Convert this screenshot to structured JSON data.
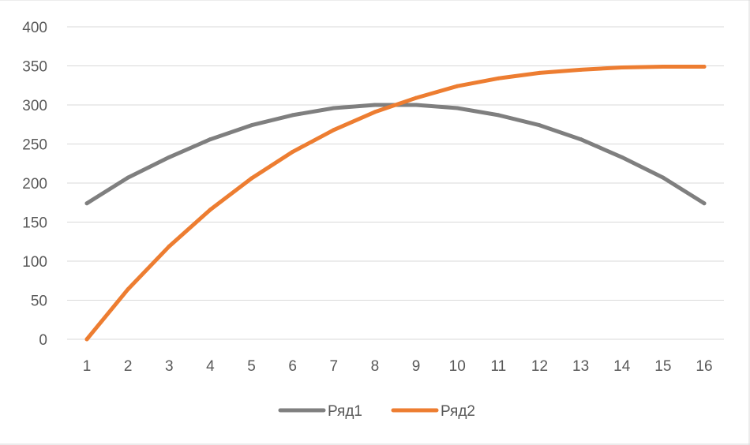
{
  "chart_data": {
    "type": "line",
    "categories": [
      "1",
      "2",
      "3",
      "4",
      "5",
      "6",
      "7",
      "8",
      "9",
      "10",
      "11",
      "12",
      "13",
      "14",
      "15",
      "16"
    ],
    "x": [
      1,
      2,
      3,
      4,
      5,
      6,
      7,
      8,
      9,
      10,
      11,
      12,
      13,
      14,
      15,
      16
    ],
    "series": [
      {
        "name": "Ряд1",
        "color": "#7f7f7f",
        "values": [
          174,
          207,
          233,
          256,
          274,
          287,
          296,
          300,
          300,
          296,
          287,
          274,
          256,
          233,
          207,
          174
        ]
      },
      {
        "name": "Ряд2",
        "color": "#ed7d31",
        "values": [
          0,
          64,
          119,
          166,
          206,
          240,
          268,
          291,
          309,
          324,
          334,
          341,
          345,
          348,
          349,
          349
        ]
      }
    ],
    "y_ticks": [
      "0",
      "50",
      "100",
      "150",
      "200",
      "250",
      "300",
      "350",
      "400"
    ],
    "ylim": [
      0,
      400
    ],
    "grid": true,
    "legend_position": "bottom"
  }
}
